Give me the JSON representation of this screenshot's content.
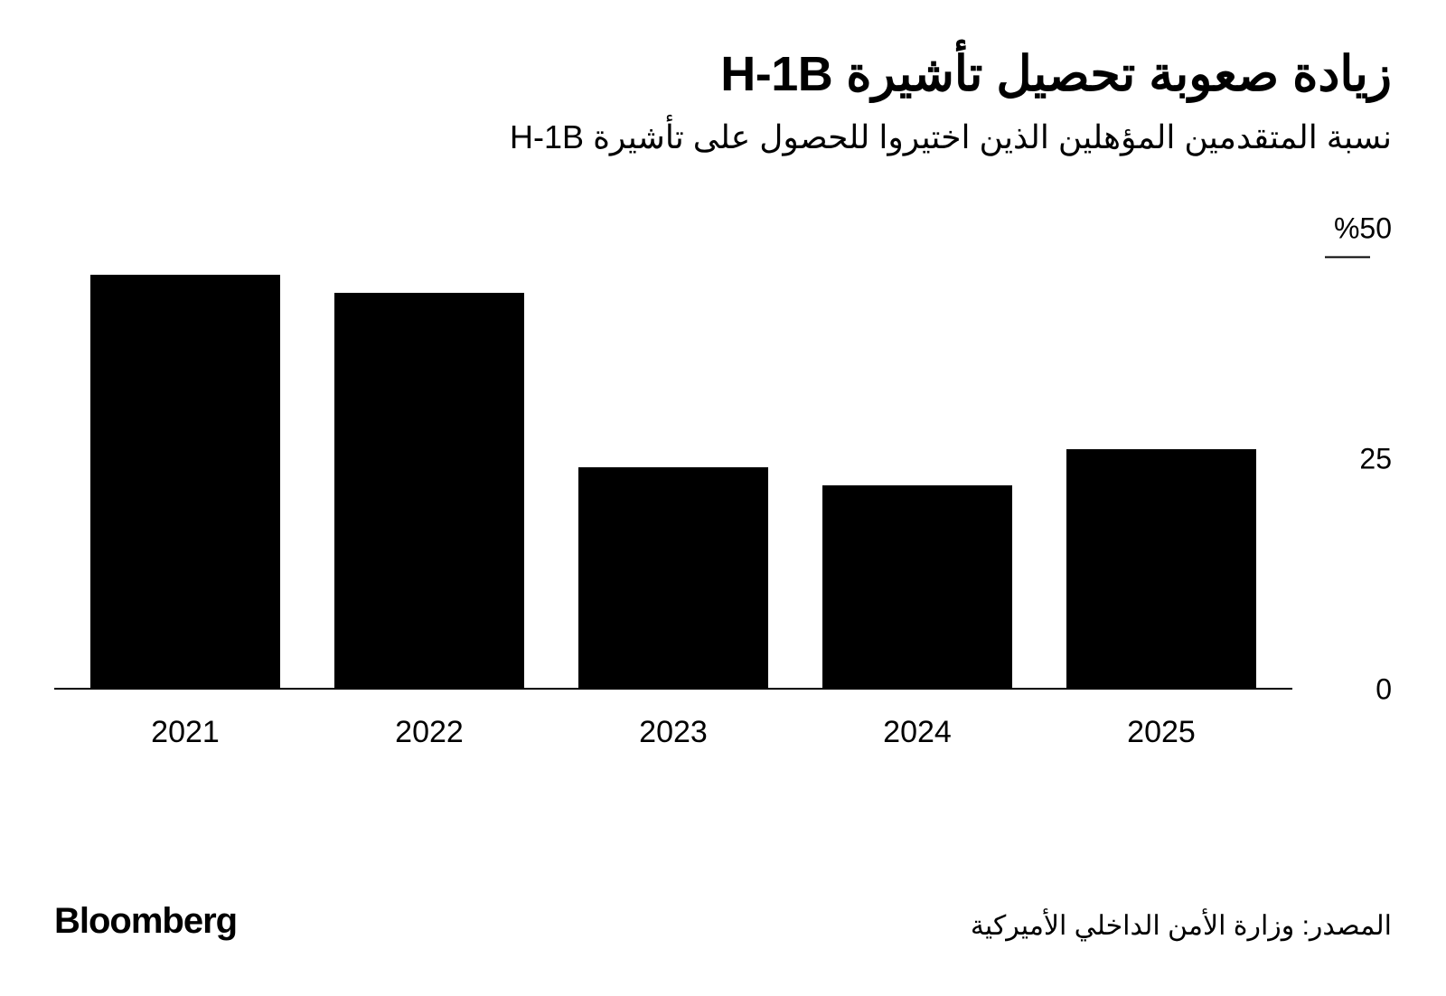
{
  "header": {
    "title": "زيادة صعوبة تحصيل تأشيرة H-1B",
    "subtitle": "نسبة المتقدمين المؤهلين الذين اختيروا للحصول على تأشيرة H-1B"
  },
  "chart": {
    "type": "bar",
    "categories": [
      "2021",
      "2022",
      "2023",
      "2024",
      "2025"
    ],
    "values": [
      45,
      43,
      24,
      22,
      26
    ],
    "bar_color": "#000000",
    "background_color": "#ffffff",
    "ylim": [
      0,
      50
    ],
    "yticks": [
      {
        "value": 0,
        "label": "0",
        "mark": false
      },
      {
        "value": 25,
        "label": "25",
        "mark": false
      },
      {
        "value": 50,
        "label": "%50",
        "mark": true
      }
    ],
    "axis_color": "#000000",
    "bar_width_ratio": 0.78,
    "label_fontsize": 34,
    "tick_fontsize": 32,
    "title_fontsize": 54,
    "subtitle_fontsize": 36
  },
  "footer": {
    "brand": "Bloomberg",
    "source": "المصدر: وزارة الأمن الداخلي الأميركية"
  }
}
